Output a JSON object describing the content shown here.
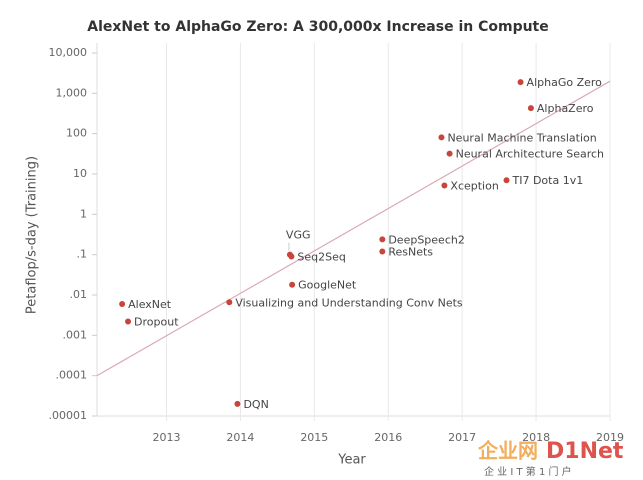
{
  "chart_data": {
    "type": "scatter",
    "title": "AlexNet to AlphaGo Zero: A 300,000x Increase in Compute",
    "x_label": "Year",
    "y_label": "Petaflop/s-day (Training)",
    "log_y": true,
    "grid": true,
    "color": "#c8453c",
    "labels": [
      "AlexNet",
      "Dropout",
      "DQN",
      "Visualizing and Understanding Conv Nets",
      "VGG",
      "Seq2Seq",
      "GoogleNet",
      "DeepSpeech2",
      "ResNets",
      "Xception",
      "Neural Machine Translation",
      "Neural Architecture Search",
      "TI7 Dota 1v1",
      "AlphaGo Zero",
      "AlphaZero"
    ],
    "x": [
      2012.4,
      2012.48,
      2013.96,
      2013.85,
      2014.67,
      2014.69,
      2014.7,
      2015.92,
      2015.92,
      2016.76,
      2016.72,
      2016.83,
      2017.6,
      2017.79,
      2017.93
    ],
    "values": [
      0.006,
      0.0022,
      2e-05,
      0.0066,
      0.1,
      0.09,
      0.018,
      0.24,
      0.12,
      5.2,
      81,
      32,
      7,
      1900,
      430
    ],
    "trend": {
      "color": "#dcaab4",
      "x": [
        2012.06,
        2019
      ],
      "values": [
        0.0001,
        2000
      ]
    },
    "xlim": [
      2012.06,
      2019
    ],
    "xticks": [
      2013,
      2014,
      2015,
      2016,
      2017,
      2018,
      2019
    ],
    "ylim": [
      1e-05,
      10000
    ],
    "yticks": [
      {
        "value": 10000,
        "label": "10,000"
      },
      {
        "value": 1000,
        "label": "1,000"
      },
      100,
      10,
      1,
      {
        "value": 0.1,
        "label": ".1"
      },
      {
        "value": 0.01,
        "label": ".01"
      },
      {
        "value": 0.001,
        "label": ".001"
      },
      {
        "value": 0.0001,
        "label": ".0001"
      },
      {
        "value": 1e-05,
        "label": ".00001"
      }
    ]
  },
  "watermark": {
    "brand": "企业网",
    "brand2": "D1Net",
    "slogan": "企 业 I T 第 1 门 户"
  }
}
